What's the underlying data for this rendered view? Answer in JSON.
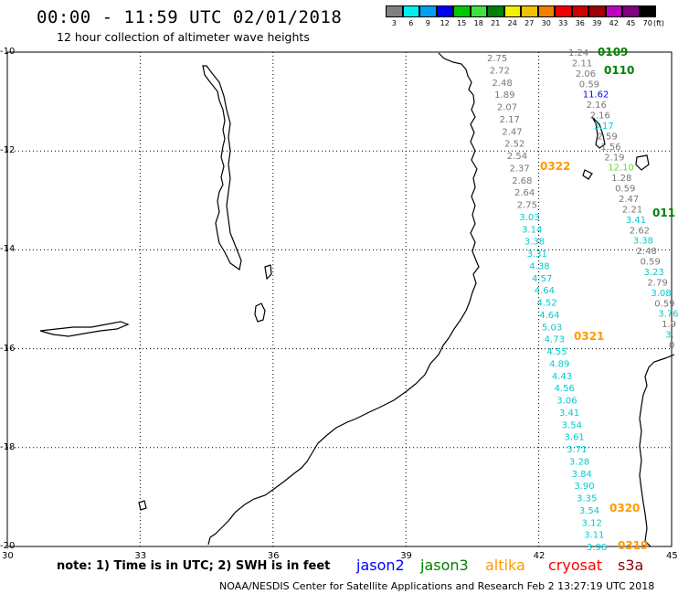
{
  "title": "00:00 - 11:59 UTC 02/01/2018",
  "subtitle": "12 hour collection of altimeter wave heights",
  "colorbar": {
    "labels": [
      "3",
      "6",
      "9",
      "12",
      "15",
      "18",
      "21",
      "24",
      "27",
      "30",
      "33",
      "36",
      "39",
      "42",
      "45",
      "70"
    ],
    "unit": "(ft)",
    "colors": [
      "#808080",
      "#00f0f0",
      "#00a0f0",
      "#0000f0",
      "#00c800",
      "#40e040",
      "#008000",
      "#f0f000",
      "#f0c000",
      "#f08000",
      "#f00000",
      "#d00000",
      "#a00000",
      "#c000c0",
      "#800080",
      "#000000"
    ]
  },
  "map": {
    "lat_ticks": [
      "-10",
      "-12",
      "-14",
      "-16",
      "-18",
      "-20"
    ],
    "lon_ticks": [
      "30",
      "33",
      "36",
      "39",
      "42",
      "45"
    ],
    "lon_range": [
      30,
      45
    ],
    "lat_range": [
      -20,
      -10
    ]
  },
  "passes": {
    "p1": {
      "name": "0322",
      "color": "#ff9900"
    },
    "p2": {
      "name": "0321",
      "color": "#ff9900"
    },
    "p3": {
      "name": "0320",
      "color": "#ff9900"
    },
    "p4": {
      "name": "0319",
      "color": "#ff9900"
    },
    "p5": {
      "name": "0109",
      "color": "#008000"
    },
    "p6": {
      "name": "0110",
      "color": "#008000"
    },
    "p7": {
      "name": "011",
      "color": "#008000"
    }
  },
  "track_a": {
    "values": [
      "2.75",
      "2.72",
      "2.48",
      "1.89",
      "2.07",
      "2.17",
      "2.47",
      "2.52",
      "2.54",
      "2.37",
      "2.68",
      "2.64",
      "2.75",
      "3.03",
      "3.14",
      "3.38",
      "3.31",
      "4.38",
      "4.57",
      "4.64",
      "4.52",
      "4.64",
      "5.03",
      "4.73",
      "4.55",
      "4.89",
      "4.43",
      "4.56",
      "3.06",
      "3.41",
      "3.54",
      "3.61",
      "3.71",
      "3.28",
      "3.84",
      "3.90",
      "3.35",
      "3.54",
      "3.12",
      "3.11",
      "3.96"
    ],
    "colors": [
      "g",
      "g",
      "g",
      "g",
      "g",
      "g",
      "g",
      "g",
      "g",
      "g",
      "g",
      "g",
      "g",
      "c",
      "c",
      "c",
      "c",
      "c",
      "c",
      "c",
      "c",
      "c",
      "c",
      "c",
      "c",
      "c",
      "c",
      "c",
      "c",
      "c",
      "c",
      "c",
      "c",
      "c",
      "c",
      "c",
      "c",
      "c",
      "c",
      "c",
      "c"
    ]
  },
  "track_b": {
    "values": [
      "1.24",
      "2.11",
      "2.06",
      "0.59",
      "11.62",
      "2.16",
      "2.16",
      "3.17",
      "2.59",
      "1.56",
      "2.19",
      "12.10",
      "1.28",
      "0.59",
      "2.47",
      "2.21",
      "3.41",
      "2.62",
      "3.38",
      "2.48",
      "0.59",
      "3.23",
      "2.79",
      "3.08",
      "0.59",
      "3.76",
      "1.9",
      "3.",
      "0"
    ],
    "colors": [
      "g",
      "g",
      "g",
      "g",
      "b",
      "g",
      "g",
      "c",
      "g",
      "g",
      "g",
      "lg",
      "g",
      "g",
      "g",
      "g",
      "c",
      "g",
      "c",
      "g",
      "g",
      "c",
      "g",
      "c",
      "g",
      "c",
      "g",
      "c",
      "g"
    ]
  },
  "note": "note: 1) Time is in UTC; 2) SWH is in feet",
  "satellites": [
    {
      "name": "jason2",
      "color": "#0000ff"
    },
    {
      "name": "jason3",
      "color": "#008000"
    },
    {
      "name": "altika",
      "color": "#ff9900"
    },
    {
      "name": "cryosat",
      "color": "#ff0000"
    },
    {
      "name": "s3a",
      "color": "#8b0000"
    }
  ],
  "credit": "NOAA/NESDIS Center for Satellite Applications and Research    Feb  2 13:27:19 UTC 2018"
}
